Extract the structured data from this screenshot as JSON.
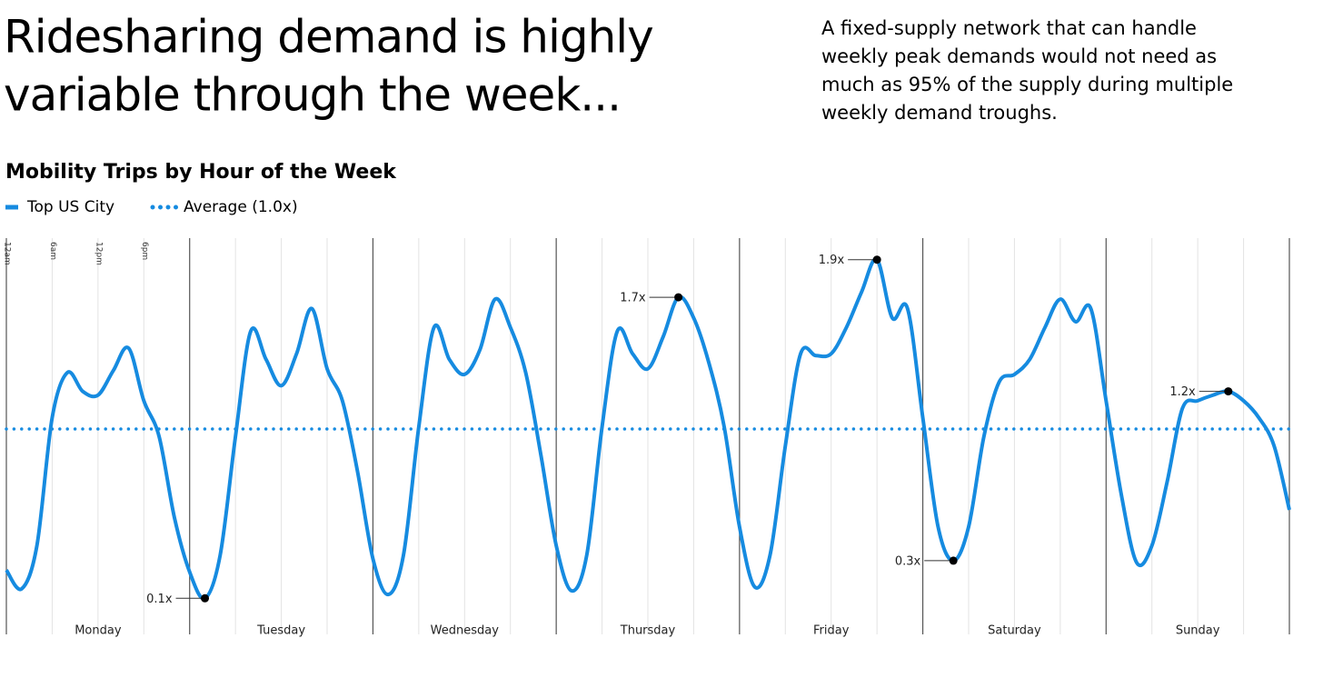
{
  "chart_data": {
    "type": "line",
    "title_lines": [
      "Ridesharing demand is highly",
      "variable through the week..."
    ],
    "description_lines": [
      "A fixed-supply network that can handle",
      "weekly peak demands would not need as",
      "much as 95% of the supply during multiple",
      "weekly demand troughs."
    ],
    "chart_title": "Mobility Trips by Hour of the Week",
    "days": [
      "Monday",
      "Tuesday",
      "Wednesday",
      "Thursday",
      "Friday",
      "Saturday",
      "Sunday"
    ],
    "x": [
      0,
      2,
      4,
      6,
      8,
      10,
      12,
      14,
      16,
      18,
      20,
      22,
      24,
      26,
      28,
      30,
      32,
      34,
      36,
      38,
      40,
      42,
      44,
      46,
      48,
      50,
      52,
      54,
      56,
      58,
      60,
      62,
      64,
      66,
      68,
      70,
      72,
      74,
      76,
      78,
      80,
      82,
      84,
      86,
      88,
      90,
      92,
      94,
      96,
      98,
      100,
      102,
      104,
      106,
      108,
      110,
      112,
      114,
      116,
      118,
      120,
      122,
      124,
      126,
      128,
      130,
      132,
      134,
      136,
      138,
      140,
      142,
      144,
      146,
      148,
      150,
      152,
      154,
      156,
      158,
      160,
      162,
      164,
      166,
      168
    ],
    "series": [
      {
        "name": "Top US City",
        "color": "#168be0",
        "values": [
          0.25,
          0.15,
          0.38,
          1.06,
          1.3,
          1.2,
          1.18,
          1.31,
          1.43,
          1.15,
          0.96,
          0.53,
          0.24,
          0.1,
          0.33,
          0.96,
          1.52,
          1.37,
          1.23,
          1.4,
          1.64,
          1.32,
          1.15,
          0.77,
          0.31,
          0.12,
          0.33,
          1.01,
          1.54,
          1.37,
          1.29,
          1.42,
          1.69,
          1.54,
          1.3,
          0.86,
          0.38,
          0.14,
          0.33,
          1.01,
          1.52,
          1.4,
          1.32,
          1.49,
          1.7,
          1.59,
          1.35,
          1.01,
          0.48,
          0.16,
          0.33,
          0.91,
          1.4,
          1.39,
          1.4,
          1.54,
          1.73,
          1.9,
          1.59,
          1.64,
          1.06,
          0.48,
          0.3,
          0.48,
          0.96,
          1.25,
          1.29,
          1.37,
          1.54,
          1.69,
          1.57,
          1.64,
          1.15,
          0.65,
          0.29,
          0.38,
          0.72,
          1.11,
          1.15,
          1.18,
          1.2,
          1.15,
          1.06,
          0.91,
          0.57
        ]
      },
      {
        "name": "Average (1.0x)",
        "color": "#168be0",
        "style": "dotted",
        "value": 1
      }
    ],
    "annotations": [
      {
        "x": 26,
        "value": 0.1,
        "label": "0.1x"
      },
      {
        "x": 88,
        "value": 1.7,
        "label": "1.7x"
      },
      {
        "x": 114,
        "value": 1.9,
        "label": "1.9x"
      },
      {
        "x": 124,
        "value": 0.3,
        "label": "0.3x"
      },
      {
        "x": 160,
        "value": 1.2,
        "label": "1.2x"
      }
    ],
    "xlim": [
      0,
      168
    ],
    "ylim": [
      0,
      2
    ],
    "xticks": [
      0,
      6,
      12,
      18,
      24,
      30,
      36,
      42,
      48,
      54,
      60,
      66,
      72,
      78,
      84,
      90,
      96,
      102,
      108,
      114,
      120,
      126,
      132,
      138,
      144,
      150,
      156,
      162,
      168
    ],
    "hour_labels": [
      {
        "value": 0,
        "label": "12am"
      },
      {
        "value": 6,
        "label": "6am"
      },
      {
        "value": 12,
        "label": "12pm"
      },
      {
        "value": 18,
        "label": "6pm"
      }
    ],
    "grid": true
  }
}
